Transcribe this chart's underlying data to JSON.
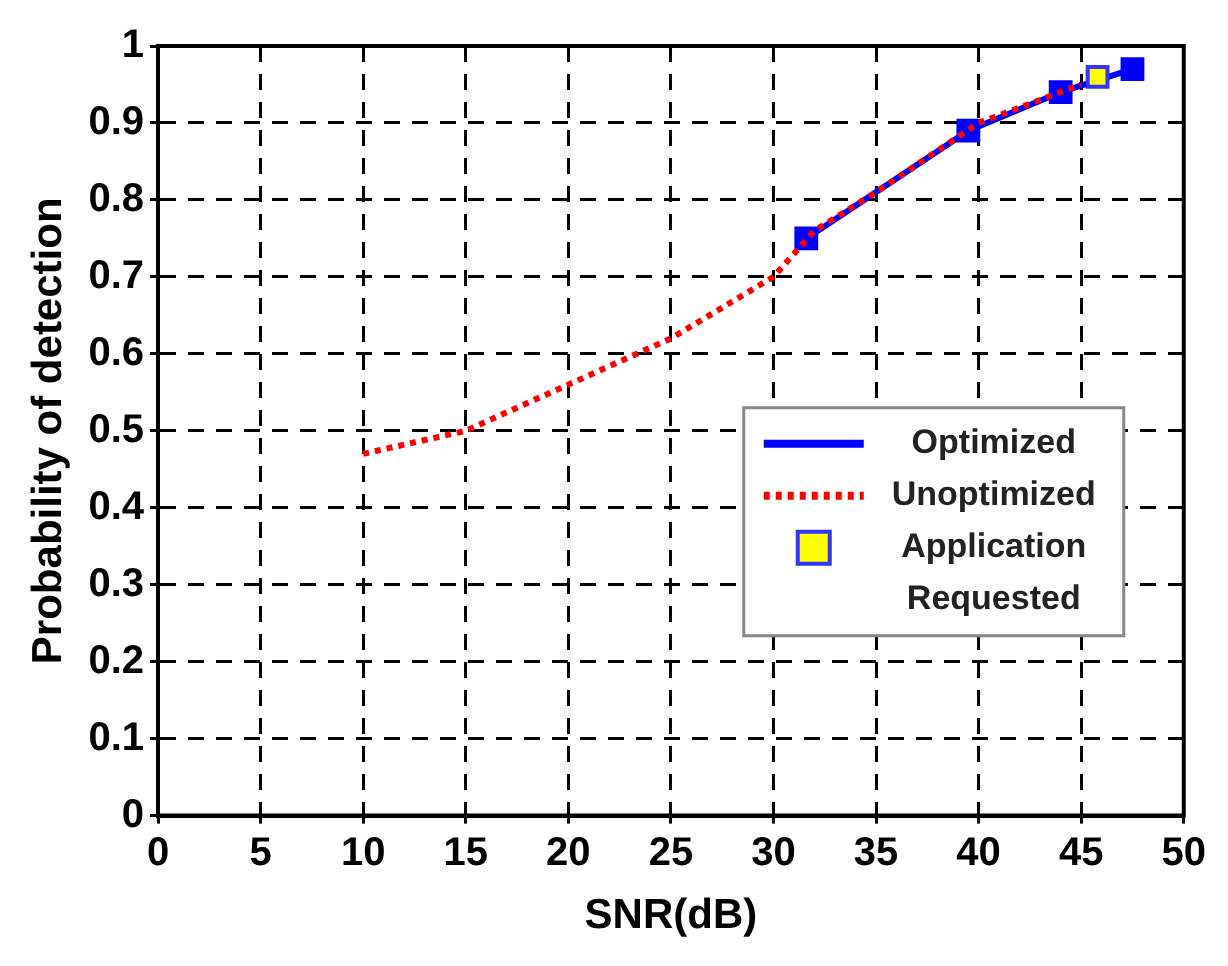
{
  "chart_data": {
    "type": "line",
    "xlabel": "SNR(dB)",
    "ylabel": "Probability of detection",
    "xlim": [
      0,
      50
    ],
    "xticks": [
      0,
      5,
      10,
      15,
      20,
      25,
      30,
      35,
      40,
      45,
      50
    ],
    "ylim": [
      0,
      1
    ],
    "yticks": [
      0,
      0.1,
      0.2,
      0.3,
      0.4,
      0.5,
      0.6,
      0.7,
      0.8,
      0.9,
      1
    ],
    "grid": true,
    "legend": "right",
    "series": [
      {
        "name": "Optimized",
        "color": "#0000ff",
        "marker": "square",
        "line_style": "solid",
        "x": [
          31.6,
          39.5,
          44,
          47.5
        ],
        "values": [
          0.75,
          0.89,
          0.94,
          0.97
        ]
      },
      {
        "name": "Unoptimized",
        "color": "#ff0000",
        "marker": "none",
        "line_style": "dotted",
        "x": [
          10,
          15,
          20,
          25,
          30,
          32,
          35,
          40,
          45
        ],
        "values": [
          0.47,
          0.5,
          0.56,
          0.62,
          0.7,
          0.76,
          0.81,
          0.9,
          0.95
        ]
      },
      {
        "name": "Application Requested",
        "type": "scatter",
        "color": "#ffff00",
        "marker": "square",
        "x": [
          45.8
        ],
        "values": [
          0.96
        ]
      }
    ]
  }
}
